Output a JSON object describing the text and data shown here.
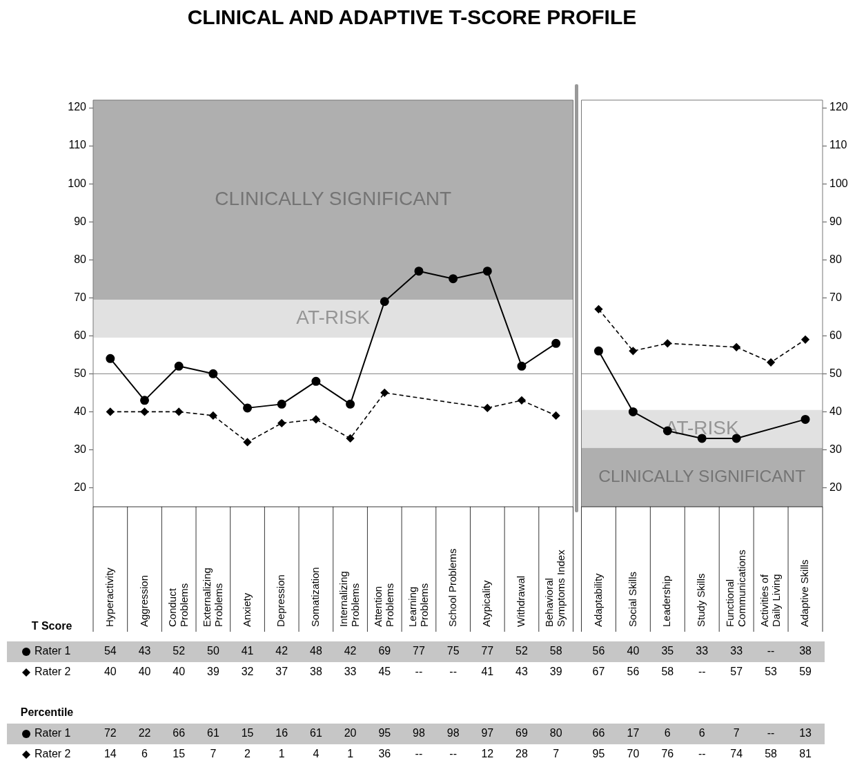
{
  "chart_data": [
    {
      "type": "line",
      "title": "CLINICAL AND ADAPTIVE T-SCORE PROFILE",
      "categories": [
        "Hyperactivity",
        "Aggression",
        "Conduct Problems",
        "Externalizing Problems",
        "Anxiety",
        "Depression",
        "Somatization",
        "Internalizing Problems",
        "Attention Problems",
        "Learning Problems",
        "School Problems",
        "Atypicality",
        "Withdrawal",
        "Behavioral Symptoms Index"
      ],
      "series": [
        {
          "name": "Rater 1",
          "color": "#000000",
          "marker": "circle",
          "line_style": "solid",
          "values": [
            54,
            43,
            52,
            50,
            41,
            42,
            48,
            42,
            69,
            77,
            75,
            77,
            52,
            58
          ],
          "value_labels": [
            "54",
            "43",
            "52",
            "50",
            "41",
            "42",
            "48",
            "42",
            "69",
            "77",
            "75",
            "77",
            "52",
            "58"
          ]
        },
        {
          "name": "Rater 2",
          "color": "#000000",
          "marker": "diamond",
          "line_style": "dashed",
          "values": [
            40,
            40,
            40,
            39,
            32,
            37,
            38,
            33,
            45,
            null,
            null,
            41,
            43,
            39
          ],
          "value_labels": [
            "40",
            "40",
            "40",
            "39",
            "32",
            "37",
            "38",
            "33",
            "45",
            "--",
            "--",
            "41",
            "43",
            "39"
          ]
        }
      ],
      "ylim": [
        15,
        122
      ],
      "yticks": [
        20,
        30,
        40,
        50,
        60,
        70,
        80,
        90,
        100,
        110,
        120
      ],
      "grid": false,
      "legend": "bottom left",
      "ref_lines": [
        {
          "axis": "y",
          "value": 50,
          "color": "#808080"
        }
      ],
      "bands": [
        {
          "axis": "y",
          "from": 69.5,
          "to": 122,
          "label": "CLINICALLY SIGNIFICANT",
          "color": "#afafaf"
        },
        {
          "axis": "y",
          "from": 59.5,
          "to": 69.5,
          "label": "AT-RISK",
          "color": "#e1e1e1"
        }
      ],
      "annotations": [
        "T Score",
        "Percentile",
        "72",
        "22",
        "66",
        "61",
        "15",
        "16",
        "61",
        "20",
        "95",
        "98",
        "98",
        "97",
        "69",
        "80",
        "14",
        "6",
        "15",
        "7",
        "2",
        "1",
        "4",
        "1",
        "36",
        "--",
        "--",
        "12",
        "28",
        "7"
      ]
    },
    {
      "type": "line",
      "categories": [
        "Adaptability",
        "Social Skills",
        "Leadership",
        "Study Skills",
        "Functional Communications",
        "Activities of Daily Living",
        "Adaptive Skills"
      ],
      "series": [
        {
          "color": "#000000",
          "marker": "circle",
          "line_style": "solid",
          "values": [
            56,
            40,
            35,
            33,
            33,
            null,
            38
          ],
          "value_labels": [
            "56",
            "40",
            "35",
            "33",
            "33",
            "--",
            "38"
          ]
        },
        {
          "color": "#000000",
          "marker": "diamond",
          "line_style": "dashed",
          "values": [
            67,
            56,
            58,
            null,
            57,
            53,
            59
          ],
          "value_labels": [
            "67",
            "56",
            "58",
            "--",
            "57",
            "53",
            "59"
          ]
        }
      ],
      "ylim": [
        15,
        122
      ],
      "yticks": [
        20,
        30,
        40,
        50,
        60,
        70,
        80,
        90,
        100,
        110,
        120
      ],
      "grid": false,
      "legend": false,
      "ref_lines": [
        {
          "axis": "y",
          "value": 50,
          "color": "#808080"
        }
      ],
      "bands": [
        {
          "axis": "y",
          "from": 30.5,
          "to": 40.5,
          "label": "AT-RISK",
          "color": "#e1e1e1"
        },
        {
          "axis": "y",
          "from": 15,
          "to": 30.5,
          "label": "CLINICALLY SIGNIFICANT",
          "color": "#afafaf"
        }
      ],
      "annotations": [
        "66",
        "17",
        "6",
        "6",
        "7",
        "--",
        "13",
        "95",
        "70",
        "76",
        "--",
        "74",
        "58",
        "81"
      ]
    }
  ]
}
